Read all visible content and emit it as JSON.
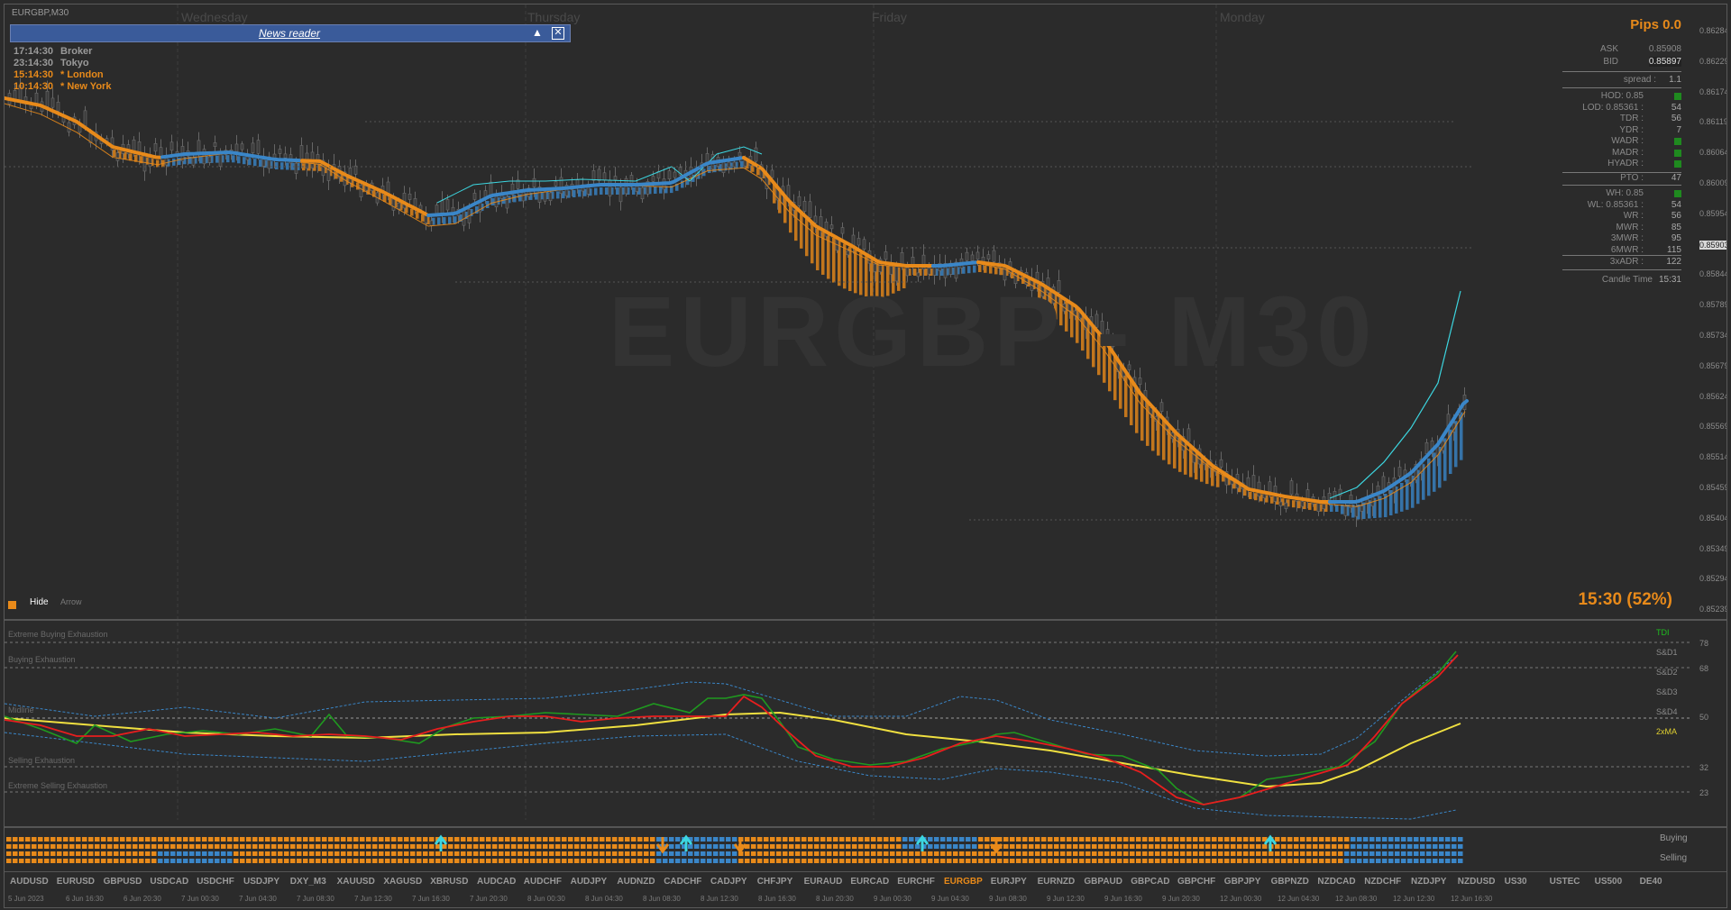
{
  "window": {
    "symbol_label": "EURGBP,M30",
    "watermark": "EURGBP - M30"
  },
  "days": [
    "Wednesday",
    "Thursday",
    "Friday",
    "Monday"
  ],
  "news": {
    "title": "News reader",
    "collapse_icon": "triangle-up-icon",
    "close_icon": "close-box-icon"
  },
  "sessions": [
    {
      "time": "17:14:30",
      "name": "Broker",
      "color": "#9a9a9a"
    },
    {
      "time": "23:14:30",
      "name": "Tokyo",
      "color": "#9a9a9a"
    },
    {
      "time": "15:14:30",
      "name": "* London",
      "color": "#e88a1a"
    },
    {
      "time": "10:14:30",
      "name": "* New York",
      "color": "#e88a1a"
    }
  ],
  "panel": {
    "pips": "Pips 0.0",
    "ask_label": "ASK",
    "ask_value": "0.85908",
    "bid_label": "BID",
    "bid_value": "0.85897",
    "spread_label": "spread :",
    "spread_value": "1.1",
    "rows_a": [
      {
        "label": "HOD: 0.85",
        "value": ""
      },
      {
        "label": "LOD: 0.85361 :",
        "value": "54"
      },
      {
        "label": "TDR :",
        "value": "56"
      },
      {
        "label": "YDR :",
        "value": "7"
      },
      {
        "label": "WADR :",
        "value": ""
      },
      {
        "label": "MADR :",
        "value": ""
      },
      {
        "label": "HYADR :",
        "value": ""
      }
    ],
    "pto_label": "PTO :",
    "pto_value": "47",
    "rows_b": [
      {
        "label": "WH: 0.85",
        "value": ""
      },
      {
        "label": "WL: 0.85361 :",
        "value": "54"
      },
      {
        "label": "WR :",
        "value": "56"
      },
      {
        "label": "MWR :",
        "value": "85"
      },
      {
        "label": "3MWR :",
        "value": "95"
      },
      {
        "label": "6MWR :",
        "value": "115"
      }
    ],
    "adr_label": "3xADR :",
    "adr_value": "122",
    "candle_label": "Candle Time",
    "candle_value": "15:31"
  },
  "price_axis": [
    "0.86284",
    "0.86229",
    "0.86174",
    "0.86119",
    "0.86064",
    "0.86009",
    "0.85954",
    "0.85899",
    "0.85844",
    "0.85789",
    "0.85734",
    "0.85679",
    "0.85624",
    "0.85569",
    "0.85514",
    "0.85459",
    "0.85404",
    "0.85349",
    "0.85294",
    "0.85239"
  ],
  "current_price": "0.85903",
  "candle_countdown": "15:30 (52%)",
  "controls": {
    "hide": "Hide",
    "arrow": "Arrow"
  },
  "tdi": {
    "levels": [
      "Extreme Buying Exhaustion",
      "Buying Exhaustion",
      "Midline",
      "Selling Exhaustion",
      "Extreme Selling Exhaustion"
    ],
    "right_labels": [
      "TDI",
      "S&D1",
      "S&D2",
      "S&D3",
      "S&D4",
      "2xMA"
    ],
    "axis": [
      "78",
      "68",
      "50",
      "32",
      "23"
    ]
  },
  "buy_sell": {
    "buying": "Buying",
    "selling": "Selling"
  },
  "symbols": [
    "AUDUSD",
    "EURUSD",
    "GBPUSD",
    "USDCAD",
    "USDCHF",
    "USDJPY",
    "DXY_M3",
    "XAUUSD",
    "XAGUSD",
    "XBRUSD",
    "AUDCAD",
    "AUDCHF",
    "AUDJPY",
    "AUDNZD",
    "CADCHF",
    "CADJPY",
    "CHFJPY",
    "EURAUD",
    "EURCAD",
    "EURCHF",
    "EURGBP",
    "EURJPY",
    "EURNZD",
    "GBPAUD",
    "GBPCAD",
    "GBPCHF",
    "GBPJPY",
    "GBPNZD",
    "NZDCAD",
    "NZDCHF",
    "NZDJPY",
    "NZDUSD",
    "US30",
    "USTEC",
    "US500",
    "DE40"
  ],
  "active_symbol": "EURGBP",
  "time_axis": [
    "5 Jun 2023",
    "6 Jun 16:30",
    "6 Jun 20:30",
    "7 Jun 00:30",
    "7 Jun 04:30",
    "7 Jun 08:30",
    "7 Jun 12:30",
    "7 Jun 16:30",
    "7 Jun 20:30",
    "8 Jun 00:30",
    "8 Jun 04:30",
    "8 Jun 08:30",
    "8 Jun 12:30",
    "8 Jun 16:30",
    "8 Jun 20:30",
    "9 Jun 00:30",
    "9 Jun 04:30",
    "9 Jun 08:30",
    "9 Jun 12:30",
    "9 Jun 16:30",
    "9 Jun 20:30",
    "12 Jun 00:30",
    "12 Jun 04:30",
    "12 Jun 08:30",
    "12 Jun 12:30",
    "12 Jun 16:30"
  ],
  "colors": {
    "orange": "#e88a1a",
    "blue": "#3a86c8",
    "cyan": "#3cd6e0",
    "red": "#e81e1e",
    "green": "#1f9a1f",
    "yellow": "#f0e040"
  }
}
